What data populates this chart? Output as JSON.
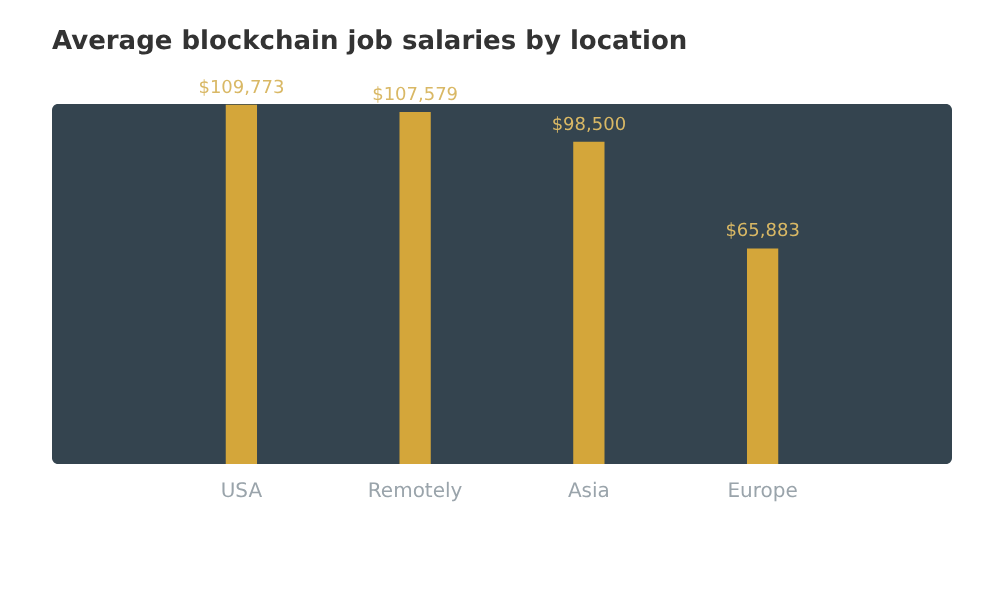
{
  "chart_data": {
    "type": "bar",
    "title": "Average blockchain job salaries by location",
    "categories": [
      "USA",
      "Remotely",
      "Asia",
      "Europe"
    ],
    "values": [
      109773,
      107579,
      98500,
      65883
    ],
    "value_labels": [
      "$109,773",
      "$107,579",
      "$98,500",
      "$65,883"
    ],
    "color": "#d4a63a",
    "grid": false
  }
}
